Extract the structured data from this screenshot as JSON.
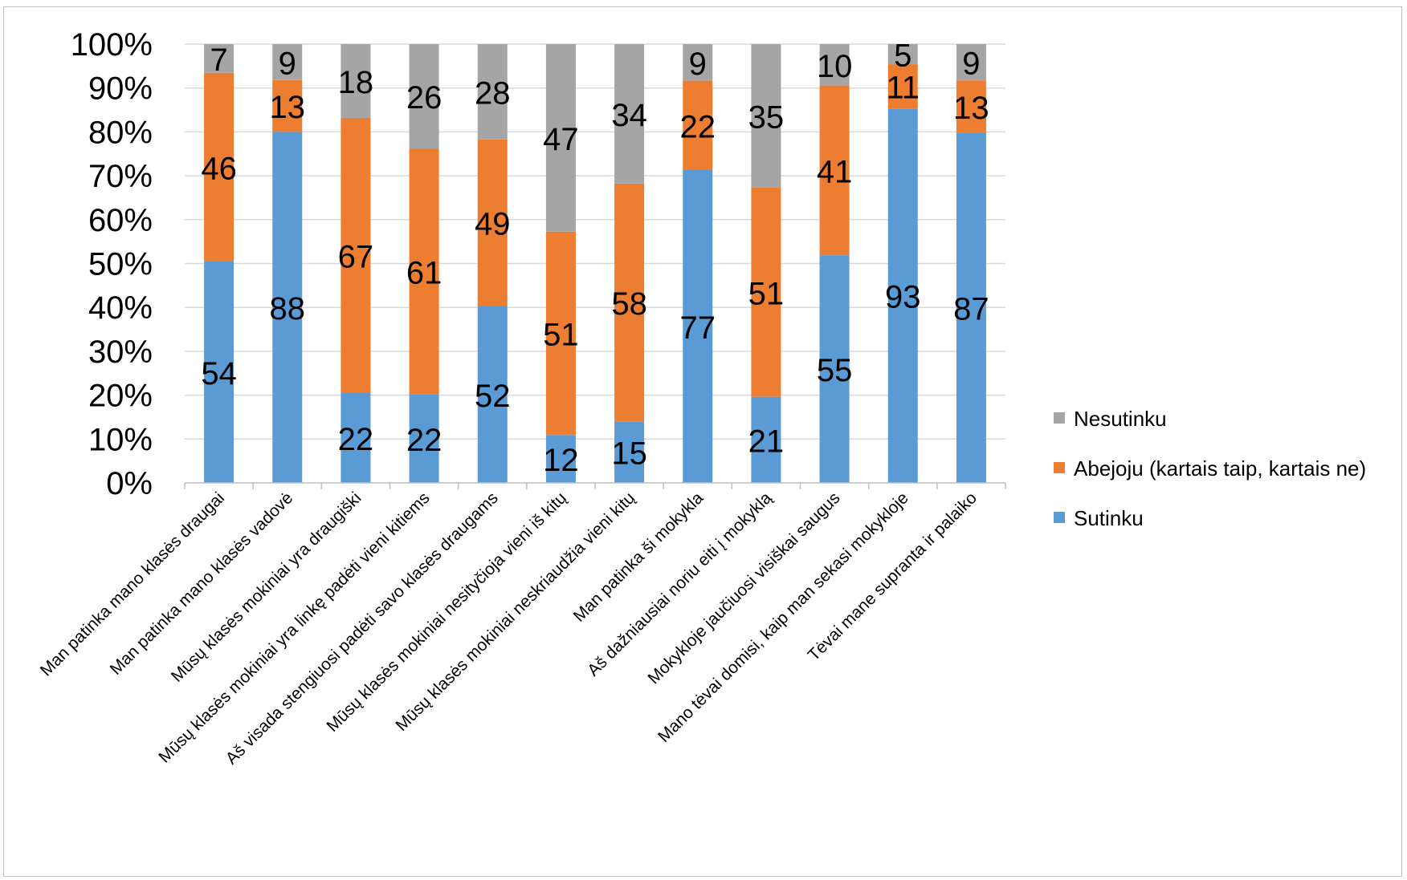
{
  "chart_data": {
    "type": "bar",
    "stacked": "percent",
    "categories": [
      "Man patinka mano klasės draugai",
      "Man patinka mano klasės vadovė",
      "Mūsų klasės mokiniai yra draugiški",
      "Mūsų klasės mokiniai yra linkę padėti vieni kitiems",
      "Aš visada stengiuosi padėti savo klasės draugams",
      "Mūsų klasės mokiniai nesityčioja vieni iš kitų",
      "Mūsų klasės mokiniai neskriaudžia vieni kitų",
      "Man patinka ši mokykla",
      "Aš dažniausiai noriu eiti į mokyklą",
      "Mokykloje jaučiuosi visiškai saugus",
      "Mano tėvai domisi, kaip man sekasi mokykloje",
      "Tėvai mane supranta ir palaiko"
    ],
    "series": [
      {
        "name": "Sutinku",
        "color": "#5b9bd5",
        "values": [
          54,
          88,
          22,
          22,
          52,
          12,
          15,
          77,
          21,
          55,
          93,
          87
        ]
      },
      {
        "name": "Abejoju (kartais taip, kartais ne)",
        "color": "#ed7d31",
        "values": [
          46,
          13,
          67,
          61,
          49,
          51,
          58,
          22,
          51,
          41,
          11,
          13
        ]
      },
      {
        "name": "Nesutinku",
        "color": "#a5a5a5",
        "values": [
          7,
          9,
          18,
          26,
          28,
          47,
          34,
          9,
          35,
          10,
          5,
          9
        ]
      }
    ],
    "y_ticks": [
      "0%",
      "10%",
      "20%",
      "30%",
      "40%",
      "50%",
      "60%",
      "70%",
      "80%",
      "90%",
      "100%"
    ],
    "ylim": [
      0,
      100
    ],
    "title": "",
    "xlabel": "",
    "ylabel": "",
    "grid": true,
    "legend_position": "right"
  }
}
